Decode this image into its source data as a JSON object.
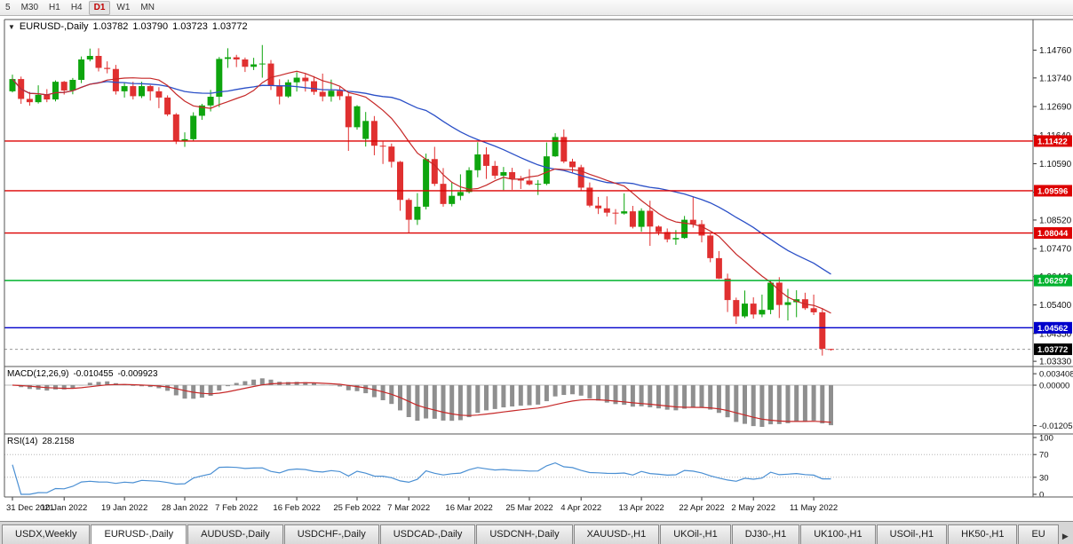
{
  "toolbar": {
    "timeframes": [
      "5",
      "M30",
      "H1",
      "H4",
      "D1",
      "W1",
      "MN"
    ],
    "active": "D1"
  },
  "chart": {
    "dropdown_icon": "▼",
    "symbol_period": "EURUSD-,Daily",
    "open": "1.03782",
    "high": "1.03790",
    "low": "1.03723",
    "close": "1.03772"
  },
  "indicators": {
    "macd": {
      "label": "MACD(12,26,9)",
      "value_main": "-0.010455",
      "value_signal": "-0.009923",
      "axis_labels": [
        "0.003408",
        "0.00000",
        "-0.012058"
      ],
      "histogram_color": "#8f8f8f",
      "signal_color": "#c62828"
    },
    "rsi": {
      "label": "RSI(14)",
      "value": "28.2158",
      "axis_labels": [
        "100",
        "70",
        "30",
        "0"
      ],
      "levels": [
        70,
        30
      ],
      "line_color": "#4a8fd3"
    }
  },
  "price_axis": {
    "ticks": [
      "1.14760",
      "1.13740",
      "1.12690",
      "1.11640",
      "1.10590",
      "1.09540",
      "1.08520",
      "1.07470",
      "1.06440",
      "1.05400",
      "1.04350",
      "1.03330"
    ]
  },
  "levels": [
    {
      "value": 1.11422,
      "label": "1.11422",
      "color": "#dd0000",
      "type": "resistance"
    },
    {
      "value": 1.09596,
      "label": "1.09596",
      "color": "#dd0000",
      "type": "resistance"
    },
    {
      "value": 1.08044,
      "label": "1.08044",
      "color": "#dd0000",
      "type": "resistance"
    },
    {
      "value": 1.06297,
      "label": "1.06297",
      "color": "#00b22d",
      "type": "support"
    },
    {
      "value": 1.04562,
      "label": "1.04562",
      "color": "#0000cc",
      "type": "support"
    }
  ],
  "current_price": {
    "value": 1.03772,
    "label": "1.03772",
    "bg": "#000000"
  },
  "chart_data": {
    "type": "candlestick",
    "symbol": "EURUSD-",
    "timeframe": "Daily",
    "bull_color": "#0ea50e",
    "bear_color": "#e03030",
    "ma_fast": {
      "estimated_period": 10,
      "color": "#c62828"
    },
    "ma_slow": {
      "estimated_period": 25,
      "color": "#2a4fc7"
    },
    "date_labels": [
      {
        "label": "31 Dec 2021",
        "index": 0
      },
      {
        "label": "10 Jan 2022",
        "index": 6
      },
      {
        "label": "19 Jan 2022",
        "index": 13
      },
      {
        "label": "28 Jan 2022",
        "index": 20
      },
      {
        "label": "7 Feb 2022",
        "index": 26
      },
      {
        "label": "16 Feb 2022",
        "index": 33
      },
      {
        "label": "25 Feb 2022",
        "index": 40
      },
      {
        "label": "7 Mar 2022",
        "index": 46
      },
      {
        "label": "16 Mar 2022",
        "index": 53
      },
      {
        "label": "25 Mar 2022",
        "index": 60
      },
      {
        "label": "4 Apr 2022",
        "index": 66
      },
      {
        "label": "13 Apr 2022",
        "index": 73
      },
      {
        "label": "22 Apr 2022",
        "index": 80
      },
      {
        "label": "2 May 2022",
        "index": 86
      },
      {
        "label": "11 May 2022",
        "index": 93
      }
    ],
    "candles": [
      [
        1.1325,
        1.1386,
        1.1321,
        1.137
      ],
      [
        1.137,
        1.1379,
        1.1279,
        1.1297
      ],
      [
        1.1297,
        1.1323,
        1.1272,
        1.1285
      ],
      [
        1.1285,
        1.1347,
        1.128,
        1.1312
      ],
      [
        1.1312,
        1.1333,
        1.1285,
        1.1295
      ],
      [
        1.1295,
        1.1365,
        1.1288,
        1.136
      ],
      [
        1.136,
        1.1363,
        1.1313,
        1.1328
      ],
      [
        1.1328,
        1.1374,
        1.1314,
        1.1367
      ],
      [
        1.1367,
        1.1453,
        1.1355,
        1.1442
      ],
      [
        1.1442,
        1.1482,
        1.1435,
        1.1455
      ],
      [
        1.1455,
        1.1483,
        1.1398,
        1.1411
      ],
      [
        1.1411,
        1.1435,
        1.1391,
        1.1407
      ],
      [
        1.1407,
        1.1422,
        1.1313,
        1.1325
      ],
      [
        1.1325,
        1.1358,
        1.1302,
        1.1344
      ],
      [
        1.1344,
        1.136,
        1.1295,
        1.1307
      ],
      [
        1.1307,
        1.136,
        1.13,
        1.1344
      ],
      [
        1.1344,
        1.1348,
        1.1291,
        1.1325
      ],
      [
        1.1325,
        1.134,
        1.1263,
        1.1302
      ],
      [
        1.1302,
        1.131,
        1.1234,
        1.124
      ],
      [
        1.124,
        1.1245,
        1.1131,
        1.1144
      ],
      [
        1.1144,
        1.1174,
        1.1121,
        1.1149
      ],
      [
        1.1149,
        1.1248,
        1.1141,
        1.1235
      ],
      [
        1.1235,
        1.1279,
        1.122,
        1.1273
      ],
      [
        1.1273,
        1.133,
        1.1251,
        1.1305
      ],
      [
        1.1305,
        1.1451,
        1.1267,
        1.1444
      ],
      [
        1.1444,
        1.1483,
        1.1411,
        1.145
      ],
      [
        1.145,
        1.1459,
        1.1414,
        1.1442
      ],
      [
        1.1442,
        1.1449,
        1.1396,
        1.1415
      ],
      [
        1.1415,
        1.1448,
        1.1403,
        1.1424
      ],
      [
        1.1424,
        1.1495,
        1.1375,
        1.1427
      ],
      [
        1.1427,
        1.144,
        1.133,
        1.1345
      ],
      [
        1.1345,
        1.1369,
        1.1277,
        1.1306
      ],
      [
        1.1306,
        1.1368,
        1.1301,
        1.1358
      ],
      [
        1.1358,
        1.1395,
        1.1324,
        1.1375
      ],
      [
        1.1375,
        1.1392,
        1.1324,
        1.1362
      ],
      [
        1.1362,
        1.1381,
        1.1312,
        1.1323
      ],
      [
        1.1323,
        1.139,
        1.1288,
        1.1306
      ],
      [
        1.1306,
        1.1368,
        1.1287,
        1.1327
      ],
      [
        1.1327,
        1.1342,
        1.1293,
        1.1307
      ],
      [
        1.1307,
        1.1317,
        1.1106,
        1.1193
      ],
      [
        1.1193,
        1.1274,
        1.1184,
        1.127
      ],
      [
        1.115,
        1.1249,
        1.1122,
        1.1216
      ],
      [
        1.1216,
        1.1234,
        1.109,
        1.1125
      ],
      [
        1.1125,
        1.114,
        1.1058,
        1.1122
      ],
      [
        1.1122,
        1.1133,
        1.1045,
        1.1066
      ],
      [
        1.1066,
        1.1069,
        1.0886,
        1.0926
      ],
      [
        1.0926,
        1.0932,
        1.0806,
        1.0853
      ],
      [
        1.0853,
        1.0951,
        1.0834,
        1.0901
      ],
      [
        1.0901,
        1.1096,
        1.0891,
        1.1076
      ],
      [
        1.1076,
        1.1121,
        1.0977,
        1.0985
      ],
      [
        1.0985,
        1.1043,
        1.0901,
        1.0911
      ],
      [
        1.0911,
        1.0991,
        1.0902,
        1.0941
      ],
      [
        1.0941,
        1.102,
        1.0925,
        1.0955
      ],
      [
        1.0955,
        1.1046,
        1.095,
        1.1035
      ],
      [
        1.1035,
        1.1138,
        1.1009,
        1.1093
      ],
      [
        1.1093,
        1.1119,
        1.1003,
        1.1051
      ],
      [
        1.1051,
        1.1069,
        1.1003,
        1.1015
      ],
      [
        1.1015,
        1.1047,
        1.0962,
        1.1028
      ],
      [
        1.1028,
        1.1044,
        1.0963,
        1.1004
      ],
      [
        1.1004,
        1.1014,
        1.0966,
        1.0997
      ],
      [
        1.0997,
        1.1039,
        1.0979,
        1.0983
      ],
      [
        1.0983,
        1.0999,
        1.0944,
        1.0985
      ],
      [
        1.0985,
        1.1137,
        1.098,
        1.1086
      ],
      [
        1.1086,
        1.1171,
        1.1084,
        1.1157
      ],
      [
        1.1157,
        1.1185,
        1.1061,
        1.1067
      ],
      [
        1.1067,
        1.1077,
        1.1027,
        1.1046
      ],
      [
        1.1046,
        1.1055,
        1.096,
        1.0971
      ],
      [
        1.0971,
        1.099,
        1.0899,
        1.0905
      ],
      [
        1.0905,
        1.0937,
        1.0874,
        1.0895
      ],
      [
        1.0895,
        1.0939,
        1.0865,
        1.0879
      ],
      [
        1.0879,
        1.0892,
        1.0836,
        1.0876
      ],
      [
        1.0876,
        1.095,
        1.0872,
        1.0884
      ],
      [
        1.0884,
        1.0904,
        1.0821,
        1.0827
      ],
      [
        1.0827,
        1.0895,
        1.0809,
        1.0886
      ],
      [
        1.0886,
        1.0923,
        1.0757,
        1.0828
      ],
      [
        1.0828,
        1.0832,
        1.0796,
        1.0808
      ],
      [
        1.0808,
        1.0821,
        1.077,
        1.0781
      ],
      [
        1.0781,
        1.0815,
        1.0761,
        1.0786
      ],
      [
        1.0786,
        1.0867,
        1.0783,
        1.0853
      ],
      [
        1.0853,
        1.0937,
        1.0824,
        1.0837
      ],
      [
        1.0837,
        1.0852,
        1.077,
        1.0795
      ],
      [
        1.0795,
        1.0801,
        1.0697,
        1.0712
      ],
      [
        1.0712,
        1.0738,
        1.0635,
        1.0637
      ],
      [
        1.0637,
        1.0655,
        1.0514,
        1.0558
      ],
      [
        1.0558,
        1.0567,
        1.047,
        1.0498
      ],
      [
        1.0498,
        1.0593,
        1.0492,
        1.0545
      ],
      [
        1.0545,
        1.0568,
        1.049,
        1.0505
      ],
      [
        1.0505,
        1.0578,
        1.0495,
        1.0522
      ],
      [
        1.0522,
        1.0632,
        1.0506,
        1.0622
      ],
      [
        1.0622,
        1.0642,
        1.0492,
        1.054
      ],
      [
        1.054,
        1.0599,
        1.0483,
        1.055
      ],
      [
        1.055,
        1.0594,
        1.0495,
        1.0561
      ],
      [
        1.0561,
        1.0585,
        1.0522,
        1.0528
      ],
      [
        1.0528,
        1.0578,
        1.0503,
        1.0513
      ],
      [
        1.0513,
        1.0528,
        1.0354,
        1.0379
      ],
      [
        1.03782,
        1.0379,
        1.03723,
        1.03772
      ]
    ]
  },
  "tabs": {
    "items": [
      "USDX,Weekly",
      "EURUSD-,Daily",
      "AUDUSD-,Daily",
      "USDCHF-,Daily",
      "USDCAD-,Daily",
      "USDCNH-,Daily",
      "XAUUSD-,H1",
      "UKOil-,H1",
      "DJ30-,H1",
      "UK100-,H1",
      "USOil-,H1",
      "HK50-,H1",
      "EU"
    ],
    "active": "EURUSD-,Daily",
    "right_arrow": "▶"
  }
}
